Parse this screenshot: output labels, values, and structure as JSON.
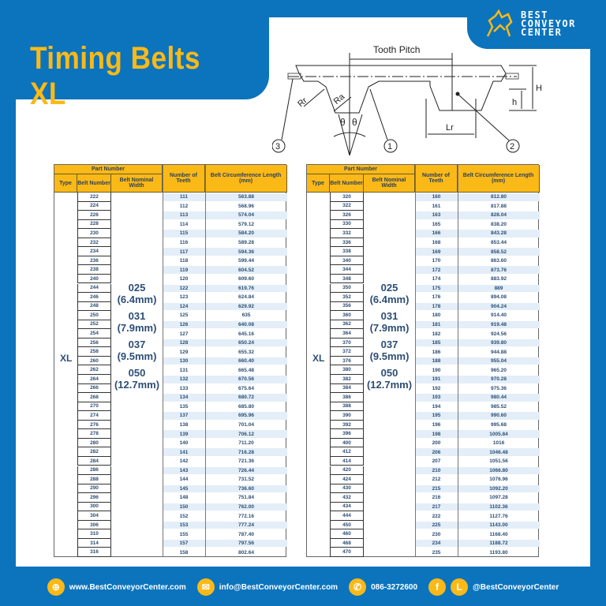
{
  "title": "Timing Belts XL",
  "logo": {
    "line1": "BEST",
    "line2": "CONVEYOR",
    "line3": "CENTER"
  },
  "diagram": {
    "tooth_pitch": "Tooth  Pitch",
    "rr": "Rr",
    "ra": "Ra",
    "theta": "θ",
    "lr": "Lr",
    "h": "h",
    "H": "H",
    "c1": "1",
    "c2": "2",
    "c3": "3"
  },
  "colors": {
    "blue": "#0b74bd",
    "yellow": "#fbb918",
    "stripe": "#e3eef8",
    "text": "#2d4e75"
  },
  "table_headers": {
    "part_number": "Part Number",
    "type": "Type",
    "belt_number": "Belt Number",
    "nominal_width": "Belt Nominal Width",
    "teeth": "Number of Teeth",
    "length": "Belt Circumference Length (mm)"
  },
  "type": "XL",
  "widths": [
    {
      "code": "025",
      "mm": "(6.4mm)"
    },
    {
      "code": "031",
      "mm": "(7.9mm)"
    },
    {
      "code": "037",
      "mm": "(9.5mm)"
    },
    {
      "code": "050",
      "mm": "(12.7mm)"
    }
  ],
  "tables": [
    {
      "rows": [
        [
          "222",
          "111",
          "563.88"
        ],
        [
          "224",
          "112",
          "568.96"
        ],
        [
          "226",
          "113",
          "574.04"
        ],
        [
          "228",
          "114",
          "579.12"
        ],
        [
          "230",
          "115",
          "584.20"
        ],
        [
          "232",
          "116",
          "589.28"
        ],
        [
          "234",
          "117",
          "594.36"
        ],
        [
          "236",
          "118",
          "599.44"
        ],
        [
          "238",
          "119",
          "604.52"
        ],
        [
          "240",
          "120",
          "609.60"
        ],
        [
          "244",
          "122",
          "619.76"
        ],
        [
          "246",
          "123",
          "624.84"
        ],
        [
          "248",
          "124",
          "629.92"
        ],
        [
          "250",
          "125",
          "635"
        ],
        [
          "252",
          "126",
          "640.08"
        ],
        [
          "254",
          "127",
          "645.16"
        ],
        [
          "256",
          "128",
          "650.24"
        ],
        [
          "258",
          "129",
          "655.32"
        ],
        [
          "260",
          "130",
          "660.40"
        ],
        [
          "262",
          "131",
          "665.48"
        ],
        [
          "264",
          "132",
          "670.56"
        ],
        [
          "266",
          "133",
          "675.64"
        ],
        [
          "268",
          "134",
          "680.72"
        ],
        [
          "270",
          "135",
          "685.80"
        ],
        [
          "274",
          "137",
          "695.96"
        ],
        [
          "276",
          "138",
          "701.04"
        ],
        [
          "278",
          "139",
          "706.12"
        ],
        [
          "280",
          "140",
          "711.20"
        ],
        [
          "282",
          "141",
          "716.28"
        ],
        [
          "284",
          "142",
          "721.36"
        ],
        [
          "286",
          "143",
          "726.44"
        ],
        [
          "288",
          "144",
          "731.52"
        ],
        [
          "290",
          "145",
          "736.60"
        ],
        [
          "296",
          "148",
          "751.84"
        ],
        [
          "300",
          "150",
          "762.00"
        ],
        [
          "304",
          "152",
          "772.16"
        ],
        [
          "306",
          "153",
          "777.24"
        ],
        [
          "310",
          "155",
          "787.40"
        ],
        [
          "314",
          "157",
          "797.56"
        ],
        [
          "316",
          "158",
          "802.64"
        ]
      ]
    },
    {
      "rows": [
        [
          "320",
          "160",
          "812.80"
        ],
        [
          "322",
          "161",
          "817.88"
        ],
        [
          "326",
          "163",
          "828.04"
        ],
        [
          "330",
          "165",
          "838.20"
        ],
        [
          "332",
          "166",
          "843.28"
        ],
        [
          "336",
          "168",
          "853.44"
        ],
        [
          "338",
          "169",
          "858.52"
        ],
        [
          "340",
          "170",
          "863.60"
        ],
        [
          "344",
          "172",
          "873.76"
        ],
        [
          "348",
          "174",
          "883.92"
        ],
        [
          "350",
          "175",
          "889"
        ],
        [
          "352",
          "176",
          "894.08"
        ],
        [
          "356",
          "178",
          "904.24"
        ],
        [
          "360",
          "180",
          "914.40"
        ],
        [
          "362",
          "181",
          "919.48"
        ],
        [
          "364",
          "182",
          "924.56"
        ],
        [
          "370",
          "185",
          "939.80"
        ],
        [
          "372",
          "186",
          "944.88"
        ],
        [
          "376",
          "188",
          "955.04"
        ],
        [
          "380",
          "190",
          "965.20"
        ],
        [
          "382",
          "191",
          "970.28"
        ],
        [
          "384",
          "192",
          "975.36"
        ],
        [
          "386",
          "193",
          "980.44"
        ],
        [
          "388",
          "194",
          "985.52"
        ],
        [
          "390",
          "195",
          "990.60"
        ],
        [
          "392",
          "196",
          "995.68"
        ],
        [
          "396",
          "198",
          "1005.84"
        ],
        [
          "400",
          "200",
          "1016"
        ],
        [
          "412",
          "206",
          "1046.48"
        ],
        [
          "414",
          "207",
          "1051.56"
        ],
        [
          "420",
          "210",
          "1066.80"
        ],
        [
          "424",
          "212",
          "1076.96"
        ],
        [
          "430",
          "215",
          "1092.20"
        ],
        [
          "432",
          "216",
          "1097.28"
        ],
        [
          "434",
          "217",
          "1102.36"
        ],
        [
          "444",
          "222",
          "1127.76"
        ],
        [
          "450",
          "225",
          "1143.00"
        ],
        [
          "460",
          "230",
          "1168.40"
        ],
        [
          "468",
          "234",
          "1188.72"
        ],
        [
          "470",
          "235",
          "1193.80"
        ]
      ]
    }
  ],
  "footer": {
    "website": "www.BestConveyorCenter.com",
    "email": "info@BestConveyorCenter.com",
    "phone": "086-3272600",
    "social": "@BestConveyorCenter",
    "facebook_icon": "f",
    "line_icon": "L"
  }
}
